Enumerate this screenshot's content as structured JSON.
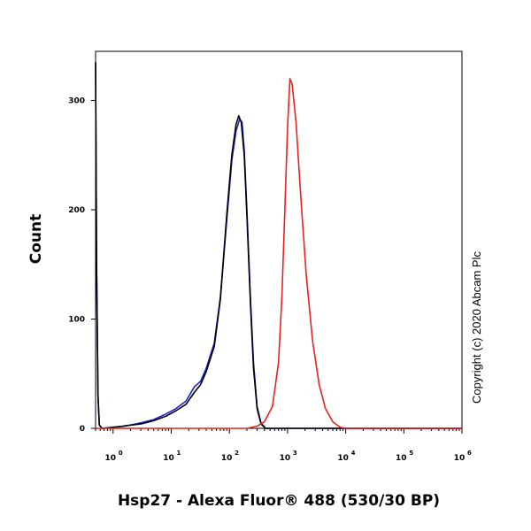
{
  "chart_data": {
    "type": "line",
    "xlabel": "Hsp27 - Alexa Fluor® 488 (530/30 BP)",
    "ylabel": "Count",
    "x_scale": "log",
    "xlim": [
      0.5,
      1000000
    ],
    "ylim": [
      0,
      345
    ],
    "y_ticks": [
      0,
      100,
      200,
      300
    ],
    "y_tick_labels": [
      "0",
      "100",
      "200",
      "300"
    ],
    "x_ticks": [
      1,
      10,
      100,
      1000,
      10000,
      100000,
      1000000
    ],
    "x_tick_base": "10",
    "x_tick_exponents": [
      "0",
      "1",
      "2",
      "3",
      "4",
      "5",
      "6"
    ],
    "grid": false,
    "legend": null,
    "series": [
      {
        "color": "#1f1fcc",
        "points": [
          [
            0.5,
            335
          ],
          [
            0.52,
            150
          ],
          [
            0.55,
            30
          ],
          [
            0.58,
            3
          ],
          [
            0.65,
            0
          ],
          [
            1,
            1
          ],
          [
            1.5,
            2
          ],
          [
            2,
            3
          ],
          [
            3,
            5
          ],
          [
            5,
            8
          ],
          [
            8,
            13
          ],
          [
            12,
            18
          ],
          [
            18,
            25
          ],
          [
            25,
            38
          ],
          [
            32,
            43
          ],
          [
            40,
            55
          ],
          [
            55,
            78
          ],
          [
            70,
            120
          ],
          [
            90,
            190
          ],
          [
            110,
            245
          ],
          [
            130,
            272
          ],
          [
            150,
            283
          ],
          [
            165,
            280
          ],
          [
            180,
            255
          ],
          [
            200,
            200
          ],
          [
            230,
            120
          ],
          [
            260,
            60
          ],
          [
            300,
            20
          ],
          [
            350,
            5
          ],
          [
            420,
            0
          ],
          [
            1000000,
            0
          ]
        ]
      },
      {
        "color": "#000000",
        "points": [
          [
            0.5,
            335
          ],
          [
            0.52,
            150
          ],
          [
            0.55,
            30
          ],
          [
            0.58,
            3
          ],
          [
            0.65,
            0
          ],
          [
            1,
            1
          ],
          [
            1.5,
            2
          ],
          [
            2,
            3
          ],
          [
            3,
            4
          ],
          [
            5,
            7
          ],
          [
            8,
            11
          ],
          [
            12,
            16
          ],
          [
            18,
            22
          ],
          [
            25,
            33
          ],
          [
            32,
            40
          ],
          [
            40,
            52
          ],
          [
            55,
            75
          ],
          [
            70,
            118
          ],
          [
            90,
            195
          ],
          [
            110,
            250
          ],
          [
            130,
            278
          ],
          [
            145,
            286
          ],
          [
            160,
            280
          ],
          [
            180,
            250
          ],
          [
            200,
            195
          ],
          [
            230,
            115
          ],
          [
            260,
            55
          ],
          [
            300,
            18
          ],
          [
            350,
            4
          ],
          [
            420,
            0
          ],
          [
            1000000,
            0
          ]
        ]
      },
      {
        "color": "#e8211e",
        "points": [
          [
            0.5,
            0
          ],
          [
            200,
            0
          ],
          [
            300,
            2
          ],
          [
            400,
            6
          ],
          [
            550,
            20
          ],
          [
            700,
            60
          ],
          [
            800,
            120
          ],
          [
            900,
            200
          ],
          [
            1000,
            275
          ],
          [
            1100,
            320
          ],
          [
            1200,
            315
          ],
          [
            1400,
            280
          ],
          [
            1700,
            210
          ],
          [
            2100,
            140
          ],
          [
            2700,
            80
          ],
          [
            3500,
            40
          ],
          [
            4500,
            18
          ],
          [
            6000,
            6
          ],
          [
            8000,
            1
          ],
          [
            10000,
            0
          ],
          [
            1000000,
            0
          ]
        ]
      }
    ]
  },
  "copyright": "Copyright (c) 2020 Abcam Plc"
}
